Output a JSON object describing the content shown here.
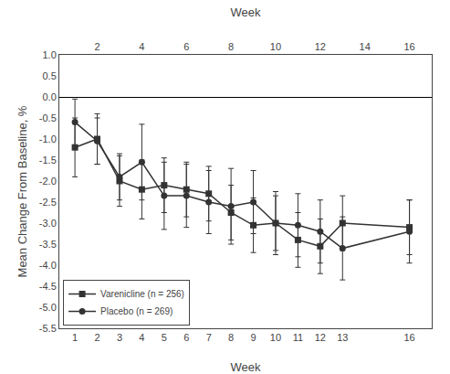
{
  "chart_data": {
    "type": "line",
    "x": [
      1,
      2,
      3,
      4,
      5,
      6,
      7,
      8,
      9,
      10,
      11,
      12,
      13,
      16
    ],
    "series": [
      {
        "name": "Varenicline (n = 256)",
        "color": "#333333",
        "marker": "square",
        "values": [
          -1.2,
          -1.0,
          -2.0,
          -2.2,
          -2.1,
          -2.2,
          -2.3,
          -2.75,
          -3.05,
          -3.0,
          -3.4,
          -3.55,
          -3.0,
          -3.1
        ],
        "error_minus": [
          0.7,
          0.6,
          0.6,
          0.7,
          0.65,
          0.65,
          0.65,
          0.65,
          0.65,
          0.65,
          0.65,
          0.65,
          0.65,
          0.65
        ],
        "error_plus": [
          0.7,
          0.6,
          0.6,
          0.7,
          0.65,
          0.65,
          0.65,
          0.65,
          0.65,
          0.65,
          0.65,
          0.65,
          0.65,
          0.65
        ]
      },
      {
        "name": "Placebo (n = 269)",
        "color": "#333333",
        "marker": "circle",
        "values": [
          -0.6,
          -1.05,
          -1.9,
          -1.55,
          -2.35,
          -2.35,
          -2.5,
          -2.6,
          -2.5,
          -3.0,
          -3.05,
          -3.2,
          -3.6,
          -3.2
        ],
        "error_minus": [
          0.55,
          0.55,
          0.55,
          0.9,
          0.8,
          0.75,
          0.75,
          0.9,
          0.75,
          0.75,
          0.75,
          0.75,
          0.75,
          0.75
        ],
        "error_plus": [
          0.55,
          0.55,
          0.55,
          0.9,
          0.8,
          0.75,
          0.75,
          0.9,
          0.75,
          0.75,
          0.75,
          0.75,
          0.75,
          0.75
        ]
      }
    ],
    "xlabel": "Week",
    "x2label": "Week",
    "ylabel": "Mean Change From Baseline, %",
    "xlim": [
      0.3,
      17
    ],
    "xticks": [
      1,
      2,
      3,
      4,
      5,
      6,
      7,
      8,
      9,
      10,
      11,
      12,
      13,
      16
    ],
    "x2lim": [
      0.3,
      17
    ],
    "x2ticks": [
      2,
      4,
      6,
      8,
      10,
      12,
      14,
      16
    ],
    "ylim": [
      -5.5,
      1.0
    ],
    "yticks": [
      {
        "value": 1.0,
        "label": "1.0"
      },
      {
        "value": 0.5,
        "label": "0.5"
      },
      {
        "value": 0.0,
        "label": "0.0"
      },
      {
        "value": -0.5,
        "label": "-0.5"
      },
      {
        "value": -1.0,
        "label": "-1.0"
      },
      {
        "value": -1.5,
        "label": "-1.5"
      },
      {
        "value": -2.0,
        "label": "-2.0"
      },
      {
        "value": -2.5,
        "label": "-2.5"
      },
      {
        "value": -3.0,
        "label": "-3.0"
      },
      {
        "value": -3.5,
        "label": "-3.5"
      },
      {
        "value": -4.0,
        "label": "-4.0"
      },
      {
        "value": -4.5,
        "label": "-4.5"
      },
      {
        "value": -5.0,
        "label": "-5.0"
      },
      {
        "value": -5.5,
        "label": "-5.5"
      }
    ],
    "grid": false,
    "legend": "lower left"
  }
}
